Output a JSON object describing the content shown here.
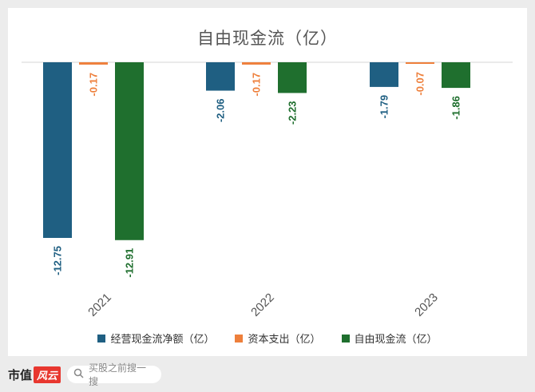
{
  "chart_data": {
    "type": "bar",
    "title": "自由现金流（亿）",
    "categories": [
      "2021",
      "2022",
      "2023"
    ],
    "series": [
      {
        "name": "经营现金流净额（亿）",
        "color": "#1f5f82",
        "values": [
          -12.75,
          -2.06,
          -1.79
        ],
        "labels": [
          "-12.75",
          "-2.06",
          "-1.79"
        ]
      },
      {
        "name": "资本支出（亿）",
        "color": "#ee7f3b",
        "values": [
          -0.17,
          -0.17,
          -0.07
        ],
        "labels": [
          "-0.17",
          "-0.17",
          "-0.07"
        ]
      },
      {
        "name": "自由现金流（亿）",
        "color": "#1f6f2e",
        "values": [
          -12.91,
          -2.23,
          -1.86
        ],
        "labels": [
          "-12.91",
          "-2.23",
          "-1.86"
        ]
      }
    ],
    "ylim": [
      -14.5,
      0
    ],
    "grid": false,
    "legend_position": "bottom"
  },
  "footer": {
    "brand": "市值",
    "brand_badge": "风云",
    "search_placeholder": "买股之前搜一搜",
    "icon": "search-icon"
  }
}
